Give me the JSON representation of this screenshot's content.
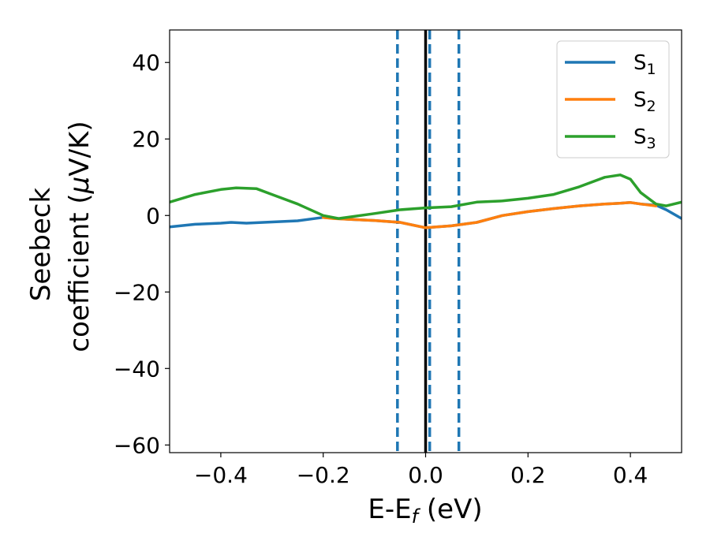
{
  "chart_data": {
    "type": "line",
    "title": "",
    "xlabel": {
      "main": "E-E",
      "sub": "f",
      "tail": " (eV)"
    },
    "ylabel": {
      "line1": "Seebeck",
      "line2_pre": "coefficient  (",
      "line2_mu": "μ",
      "line2_post": "V/K)"
    },
    "xlim": [
      -0.5,
      0.5
    ],
    "ylim": [
      -62,
      48.5
    ],
    "xticks": [
      -0.4,
      -0.2,
      0.0,
      0.2,
      0.4
    ],
    "xtick_labels": [
      "−0.4",
      "−0.2",
      "0.0",
      "0.2",
      "0.4"
    ],
    "yticks": [
      -60,
      -40,
      -20,
      0,
      20,
      40
    ],
    "ytick_labels": [
      "−60",
      "−40",
      "−20",
      "0",
      "20",
      "40"
    ],
    "grid": false,
    "legend_position": "top-right",
    "vlines": [
      {
        "x": 0.0,
        "style": "solid",
        "color": "#000000"
      },
      {
        "x": -0.055,
        "style": "dashed",
        "color": "#1f77b4"
      },
      {
        "x": 0.008,
        "style": "dashed",
        "color": "#1f77b4"
      },
      {
        "x": 0.065,
        "style": "dashed",
        "color": "#1f77b4"
      }
    ],
    "series": [
      {
        "name": "S",
        "sub": "1",
        "color": "#1f77b4",
        "x": [
          -0.5,
          -0.45,
          -0.4,
          -0.38,
          -0.35,
          -0.3,
          -0.25,
          -0.2,
          -0.18,
          -0.15,
          -0.1,
          -0.05,
          0.0,
          0.05,
          0.1,
          0.15,
          0.2,
          0.25,
          0.3,
          0.35,
          0.38,
          0.4,
          0.42,
          0.45,
          0.47,
          0.5
        ],
        "y": [
          -3,
          -2.3,
          -2,
          -1.8,
          -2,
          -1.7,
          -1.4,
          -0.5,
          -0.7,
          -1,
          -1.3,
          -1.8,
          -3.2,
          -2.7,
          -1.8,
          0,
          1,
          1.8,
          2.5,
          3,
          3.2,
          3.4,
          3,
          2.7,
          1.5,
          -0.8
        ]
      },
      {
        "name": "S",
        "sub": "2",
        "color": "#ff7f0e",
        "x": [
          -0.2,
          -0.18,
          -0.15,
          -0.1,
          -0.05,
          0.0,
          0.05,
          0.1,
          0.15,
          0.2,
          0.25,
          0.3,
          0.35,
          0.38,
          0.4,
          0.42,
          0.45
        ],
        "y": [
          -0.5,
          -0.8,
          -1,
          -1.3,
          -1.8,
          -3.2,
          -2.7,
          -1.8,
          0,
          1,
          1.8,
          2.5,
          3,
          3.2,
          3.4,
          3,
          2.5
        ]
      },
      {
        "name": "S",
        "sub": "3",
        "color": "#2ca02c",
        "x": [
          -0.5,
          -0.45,
          -0.4,
          -0.37,
          -0.33,
          -0.3,
          -0.25,
          -0.2,
          -0.17,
          -0.1,
          -0.05,
          0.0,
          0.05,
          0.1,
          0.15,
          0.2,
          0.25,
          0.3,
          0.35,
          0.38,
          0.4,
          0.42,
          0.45,
          0.47,
          0.5
        ],
        "y": [
          3.5,
          5.5,
          6.8,
          7.2,
          7,
          5.5,
          3,
          0,
          -0.8,
          0.5,
          1.5,
          2,
          2.3,
          3.5,
          3.8,
          4.5,
          5.5,
          7.5,
          10,
          10.6,
          9.5,
          6,
          3,
          2.5,
          3.5
        ]
      }
    ]
  }
}
